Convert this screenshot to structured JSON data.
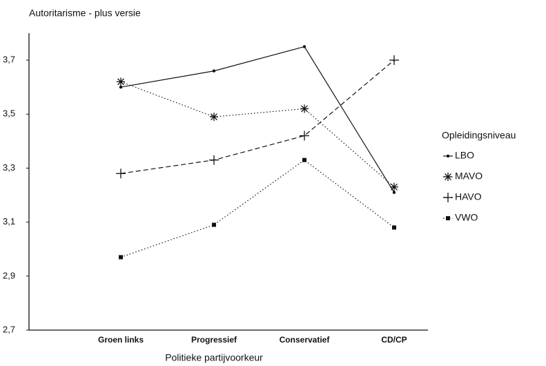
{
  "chart_data": {
    "type": "line",
    "title": "Autoritarisme - plus versie",
    "x_label": "Politieke partijvoorkeur",
    "legend_title": "Opleidingsniveau",
    "legend": "right",
    "categories": [
      "Groen links",
      "Progressief",
      "Conservatief",
      "CD/CP"
    ],
    "ylim": [
      2.7,
      3.8
    ],
    "yticks": [
      {
        "value": 2.7,
        "label": "2,7"
      },
      {
        "value": 2.9,
        "label": "2,9"
      },
      {
        "value": 3.1,
        "label": "3,1"
      },
      {
        "value": 3.3,
        "label": "3,3"
      },
      {
        "value": 3.5,
        "label": "3,5"
      },
      {
        "value": 3.7,
        "label": "3,7"
      }
    ],
    "series": [
      {
        "name": "LBO",
        "color": "#111111",
        "line_style": "solid",
        "marker": "dot",
        "values": [
          3.6,
          3.66,
          3.75,
          3.21
        ]
      },
      {
        "name": "MAVO",
        "color": "#111111",
        "line_style": "dotted",
        "marker": "asterisk",
        "values": [
          3.62,
          3.49,
          3.52,
          3.23
        ]
      },
      {
        "name": "HAVO",
        "color": "#111111",
        "line_style": "dashed",
        "marker": "plus",
        "values": [
          3.28,
          3.33,
          3.42,
          3.7
        ]
      },
      {
        "name": "VWO",
        "color": "#111111",
        "line_style": "dotted",
        "marker": "square",
        "values": [
          2.97,
          3.09,
          3.33,
          3.08
        ]
      }
    ]
  }
}
